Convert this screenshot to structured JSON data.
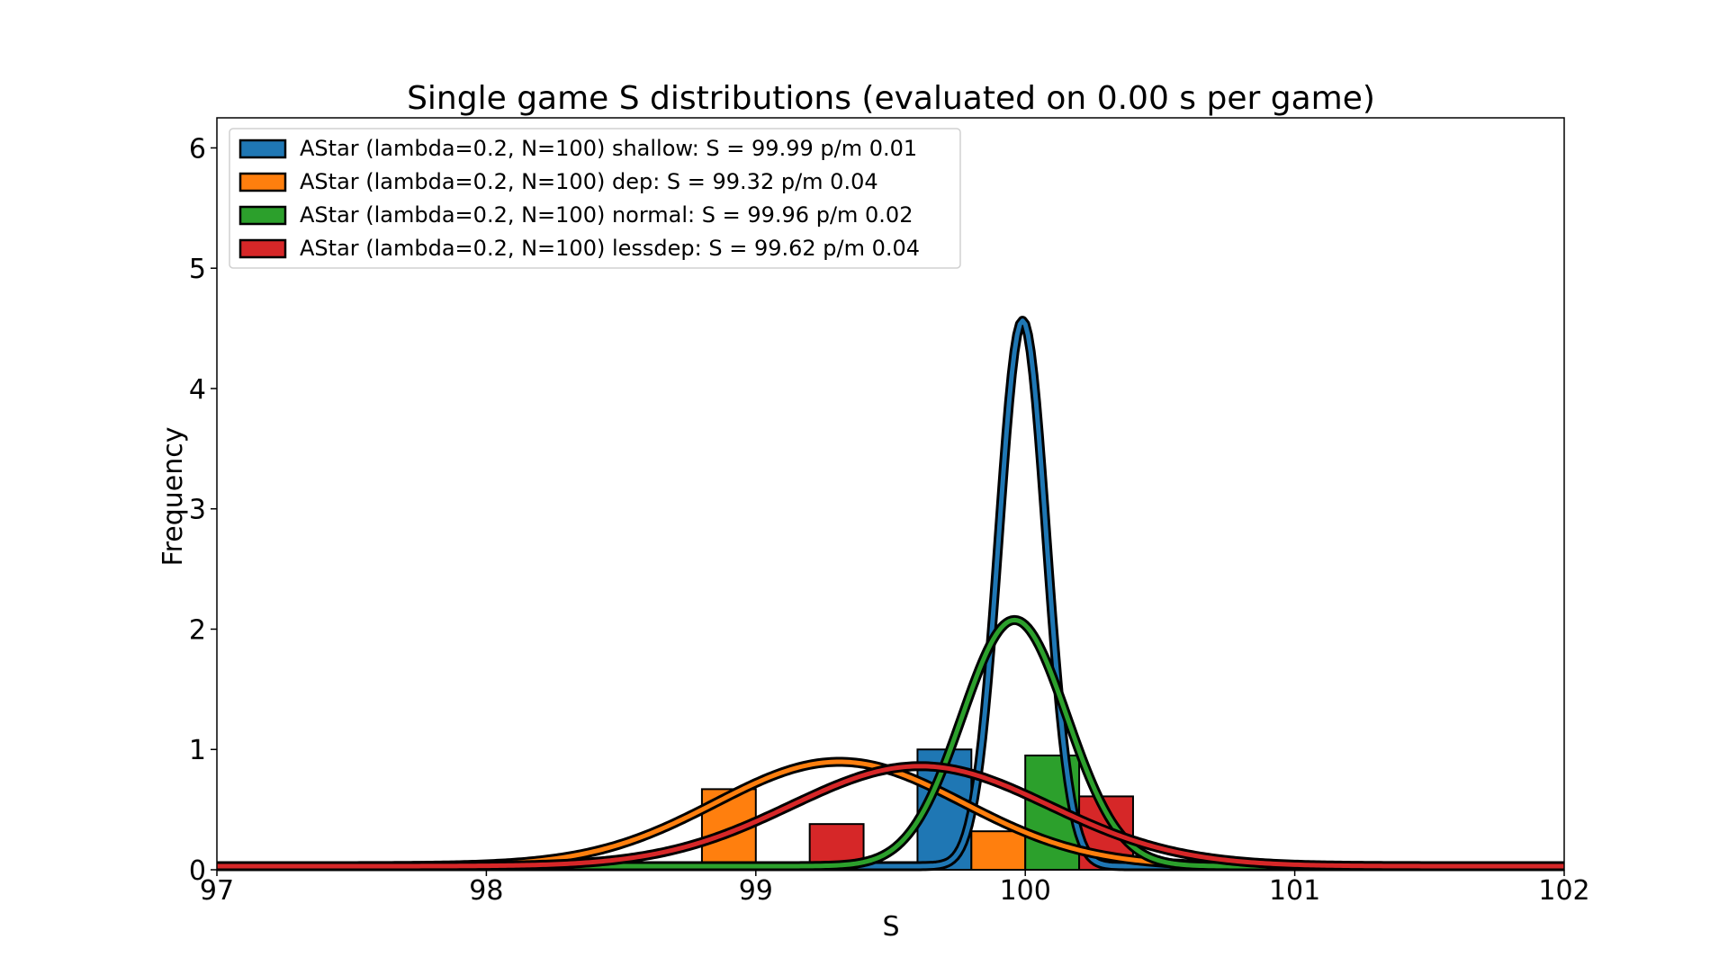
{
  "chart_data": {
    "type": "bar",
    "title": "Single game S distributions (evaluated on 0.00 s per game)",
    "xlabel": "S",
    "ylabel": "Frequency",
    "xlim": [
      97,
      102
    ],
    "ylim": [
      0,
      6.25
    ],
    "xticks": [
      "97",
      "98",
      "99",
      "100",
      "101",
      "102"
    ],
    "yticks": [
      "0",
      "1",
      "2",
      "3",
      "4",
      "5",
      "6"
    ],
    "grid": false,
    "legend_position": "top-left",
    "bin_width": 0.2,
    "series": [
      {
        "name": "AStar (lambda=0.2, N=100) shallow: S = 99.99 p/m 0.01",
        "color": "#1f77b4",
        "bins": [
          {
            "x0": 99.6,
            "x1": 99.8,
            "value": 1.0
          }
        ],
        "fit": {
          "mean": 99.99,
          "std": 0.088
        }
      },
      {
        "name": "AStar (lambda=0.2, N=100) dep: S = 99.32 p/m 0.04",
        "color": "#ff7f0e",
        "bins": [
          {
            "x0": 98.8,
            "x1": 99.0,
            "value": 0.67
          },
          {
            "x0": 99.8,
            "x1": 100.0,
            "value": 0.32
          }
        ],
        "fit": {
          "mean": 99.31,
          "std": 0.46
        }
      },
      {
        "name": "AStar (lambda=0.2, N=100) normal: S = 99.96 p/m 0.02",
        "color": "#2ca02c",
        "bins": [
          {
            "x0": 100.0,
            "x1": 100.2,
            "value": 0.95
          }
        ],
        "fit": {
          "mean": 99.96,
          "std": 0.195
        }
      },
      {
        "name": "AStar (lambda=0.2, N=100) lessdep: S = 99.62 p/m 0.04",
        "color": "#d62728",
        "bins": [
          {
            "x0": 99.2,
            "x1": 99.4,
            "value": 0.38
          },
          {
            "x0": 100.2,
            "x1": 100.4,
            "value": 0.61
          }
        ],
        "fit": {
          "mean": 99.61,
          "std": 0.48
        }
      }
    ]
  }
}
